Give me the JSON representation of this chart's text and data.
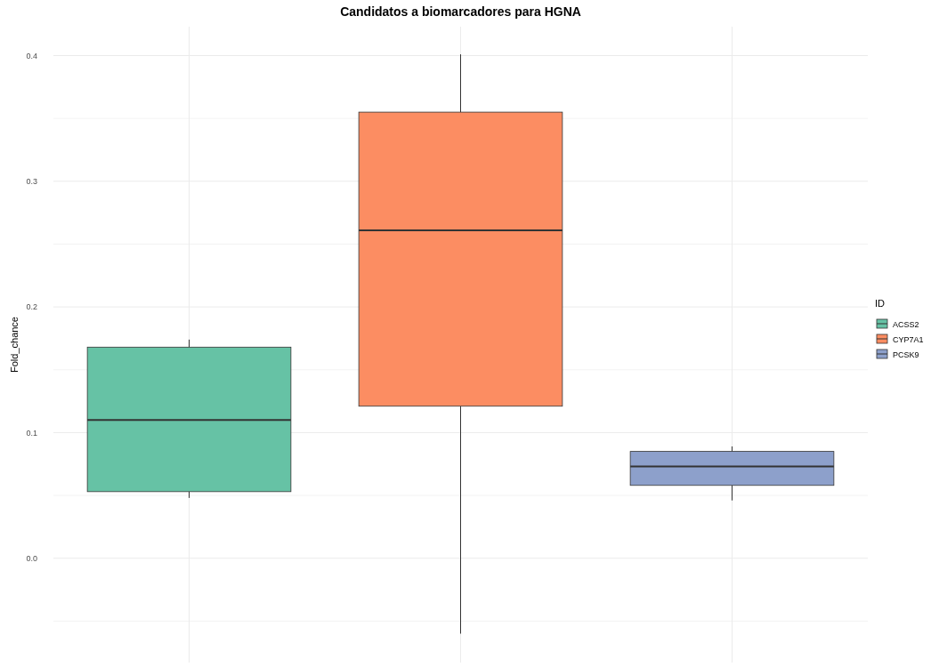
{
  "chart_data": {
    "type": "box",
    "title": "Candidatos a biomarcadores para HGNA",
    "ylabel": "Fold_chance",
    "legend_title": "ID",
    "categories": [
      null,
      null,
      null
    ],
    "series": [
      {
        "name": "ACSS2",
        "color": "#66c2a5",
        "boxes": [
          {
            "low": 0.048,
            "q1": 0.053,
            "median": 0.11,
            "q3": 0.168,
            "high": 0.174
          },
          null,
          null
        ]
      },
      {
        "name": "CYP7A1",
        "color": "#fc8d62",
        "boxes": [
          null,
          {
            "low": -0.06,
            "q1": 0.121,
            "median": 0.261,
            "q3": 0.355,
            "high": 0.401
          },
          null
        ]
      },
      {
        "name": "PCSK9",
        "color": "#8da0cb",
        "boxes": [
          null,
          null,
          {
            "low": 0.046,
            "q1": 0.058,
            "median": 0.073,
            "q3": 0.085,
            "high": 0.089
          }
        ]
      }
    ],
    "ylim": [
      -0.083,
      0.423
    ],
    "yticks": [
      {
        "value": -0.05,
        "label": null
      },
      "0.0",
      {
        "value": 0.05,
        "label": null
      },
      {
        "value": 0.1,
        "label": "0.1"
      },
      {
        "value": 0.15,
        "label": null
      },
      {
        "value": 0.2,
        "label": "0.2"
      },
      {
        "value": 0.25,
        "label": null
      },
      {
        "value": 0.3,
        "label": "0.3"
      },
      {
        "value": 0.35,
        "label": null
      },
      {
        "value": 0.4,
        "label": "0.4"
      }
    ],
    "grid": true,
    "legend": "right",
    "tick_labels": "y"
  }
}
